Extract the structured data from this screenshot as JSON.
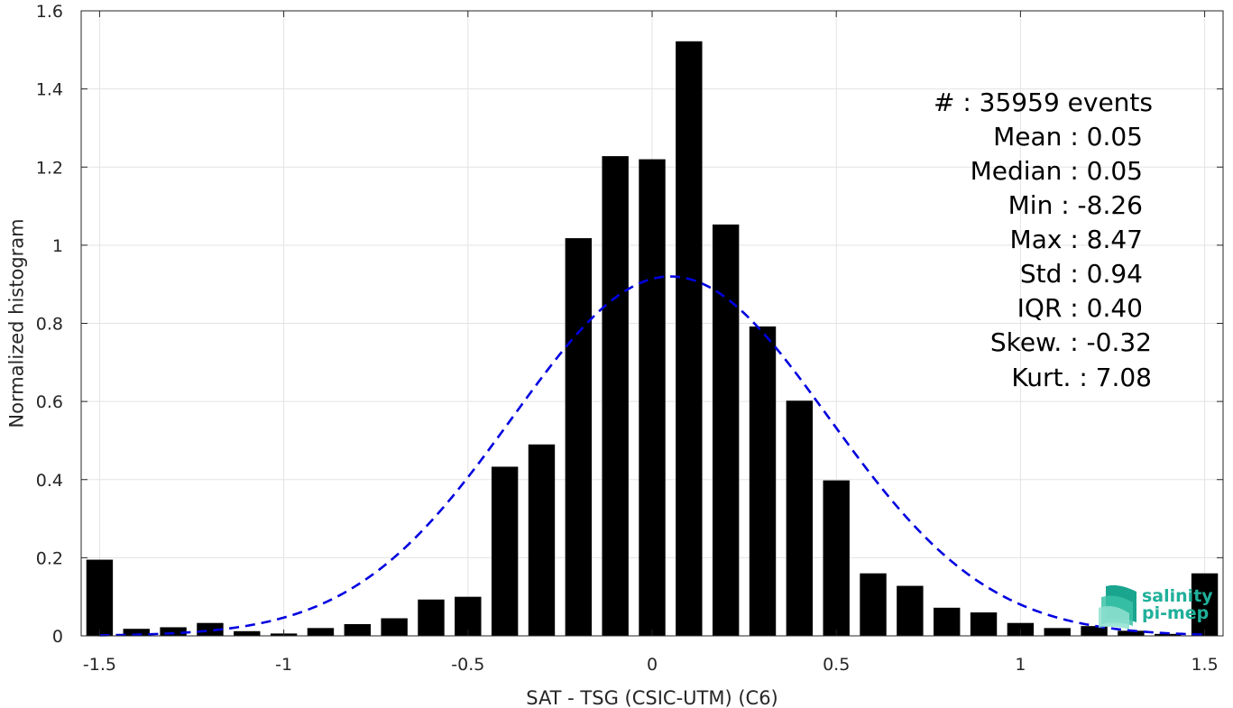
{
  "chart_data": {
    "type": "bar",
    "title": "",
    "xlabel": "SAT - TSG (CSIC-UTM) (C6)",
    "ylabel": "Normalized histogram",
    "xlim": [
      -1.55,
      1.55
    ],
    "ylim": [
      0,
      1.6
    ],
    "grid": true,
    "x_ticks": [
      -1.5,
      -1,
      -0.5,
      0,
      0.5,
      1,
      1.5
    ],
    "x_tick_labels": [
      "-1.5",
      "-1",
      "-0.5",
      "0",
      "0.5",
      "1",
      "1.5"
    ],
    "y_ticks": [
      0,
      0.2,
      0.4,
      0.6,
      0.8,
      1,
      1.2,
      1.4,
      1.6
    ],
    "y_tick_labels": [
      "0",
      "0.2",
      "0.4",
      "0.6",
      "0.8",
      "1",
      "1.2",
      "1.4",
      "1.6"
    ],
    "bar_color": "#000000",
    "x": [
      -1.5,
      -1.4,
      -1.3,
      -1.2,
      -1.1,
      -1.0,
      -0.9,
      -0.8,
      -0.7,
      -0.6,
      -0.5,
      -0.4,
      -0.3,
      -0.2,
      -0.1,
      0.0,
      0.1,
      0.2,
      0.3,
      0.4,
      0.5,
      0.6,
      0.7,
      0.8,
      0.9,
      1.0,
      1.1,
      1.2,
      1.3,
      1.4,
      1.5
    ],
    "values": [
      0.195,
      0.018,
      0.022,
      0.033,
      0.012,
      0.006,
      0.02,
      0.03,
      0.045,
      0.093,
      0.1,
      0.433,
      0.49,
      1.018,
      1.228,
      1.22,
      1.522,
      1.053,
      0.792,
      0.602,
      0.398,
      0.16,
      0.128,
      0.072,
      0.06,
      0.033,
      0.02,
      0.025,
      0.013,
      0.005,
      0.16
    ],
    "gaussian_fit": {
      "mean": 0.05,
      "std": 0.43,
      "peak": 0.92,
      "color": "#0000e0",
      "style": "dashed"
    },
    "annotations": [
      "#  : 35959 events",
      "Mean : 0.05",
      "Median : 0.05",
      "Min : -8.26",
      "Max : 8.47",
      "Std : 0.94",
      "IQR : 0.40",
      "Skew. : -0.32",
      "Kurt. : 7.08"
    ]
  },
  "logo": {
    "line1": "salinity",
    "line2": "pi-mep",
    "color": "#20b09a"
  }
}
